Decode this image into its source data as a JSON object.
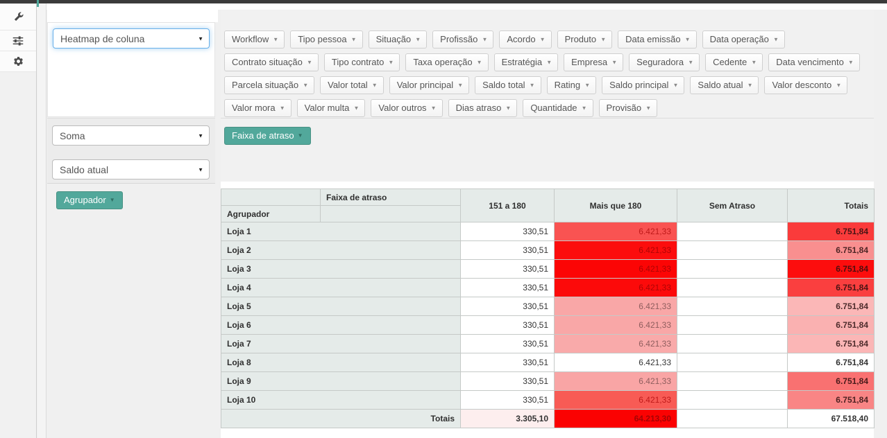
{
  "topbar": {
    "accent_color": "#4fa99c"
  },
  "sidebar": {
    "icons": [
      {
        "name": "wrench-icon"
      },
      {
        "name": "sliders-icon"
      },
      {
        "name": "gear-icon"
      }
    ]
  },
  "controls": {
    "heatmap_mode_select": {
      "value": "Heatmap de coluna"
    },
    "aggregation_select": {
      "value": "Soma"
    },
    "value_field_select": {
      "value": "Saldo atual"
    },
    "row_field_button": {
      "label": "Agrupador"
    },
    "column_field_button": {
      "label": "Faixa de atraso"
    }
  },
  "filters": {
    "available_fields": [
      "Workflow",
      "Tipo pessoa",
      "Situação",
      "Profissão",
      "Acordo",
      "Produto",
      "Data emissão",
      "Data operação",
      "Contrato situação",
      "Tipo contrato",
      "Taxa operação",
      "Estratégia",
      "Empresa",
      "Seguradora",
      "Cedente",
      "Data vencimento",
      "Parcela situação",
      "Valor total",
      "Valor principal",
      "Saldo total",
      "Rating",
      "Saldo principal",
      "Saldo atual",
      "Valor desconto",
      "Valor mora",
      "Valor multa",
      "Valor outros",
      "Dias atraso",
      "Quantidade",
      "Provisão"
    ]
  },
  "chart_data": {
    "type": "heatmap",
    "row_field": "Agrupador",
    "column_field": "Faixa de atraso",
    "columns": [
      "151 a 180",
      "Mais que 180",
      "Sem Atraso",
      "Totais"
    ],
    "accent_colors": {
      "max": "#fc0000",
      "min": "#ffffff"
    },
    "rows": [
      {
        "label": "Loja 1",
        "cells": [
          {
            "v": "330,51",
            "bg": "#ffffff",
            "fg": "#333333"
          },
          {
            "v": "6.421,33",
            "bg": "#f95352",
            "fg": "#bf1a1a"
          },
          {
            "v": "",
            "bg": "#ffffff",
            "fg": "#333333"
          },
          {
            "v": "6.751,84",
            "bg": "#fa3b3b",
            "fg": "#481414",
            "b": true
          }
        ]
      },
      {
        "label": "Loja 2",
        "cells": [
          {
            "v": "330,51",
            "bg": "#ffffff",
            "fg": "#333333"
          },
          {
            "v": "6.421,33",
            "bg": "#fc0d0d",
            "fg": "#ae0505"
          },
          {
            "v": "",
            "bg": "#ffffff",
            "fg": "#333333"
          },
          {
            "v": "6.751,84",
            "bg": "#f98f8f",
            "fg": "#4d2525",
            "b": true
          }
        ]
      },
      {
        "label": "Loja 3",
        "cells": [
          {
            "v": "330,51",
            "bg": "#ffffff",
            "fg": "#333333"
          },
          {
            "v": "6.421,33",
            "bg": "#fc0505",
            "fg": "#ae0505"
          },
          {
            "v": "",
            "bg": "#ffffff",
            "fg": "#333333"
          },
          {
            "v": "6.751,84",
            "bg": "#fd0d0d",
            "fg": "#4d0f0f",
            "b": true
          }
        ]
      },
      {
        "label": "Loja 4",
        "cells": [
          {
            "v": "330,51",
            "bg": "#ffffff",
            "fg": "#333333"
          },
          {
            "v": "6.421,33",
            "bg": "#fc0a0a",
            "fg": "#ae0505"
          },
          {
            "v": "",
            "bg": "#ffffff",
            "fg": "#333333"
          },
          {
            "v": "6.751,84",
            "bg": "#fa3f3f",
            "fg": "#481414",
            "b": true
          }
        ]
      },
      {
        "label": "Loja 5",
        "cells": [
          {
            "v": "330,51",
            "bg": "#ffffff",
            "fg": "#333333"
          },
          {
            "v": "6.421,33",
            "bg": "#f9a7a7",
            "fg": "#8f5e5e"
          },
          {
            "v": "",
            "bg": "#ffffff",
            "fg": "#333333"
          },
          {
            "v": "6.751,84",
            "bg": "#fbb7b7",
            "fg": "#4d2c2c",
            "b": true
          }
        ]
      },
      {
        "label": "Loja 6",
        "cells": [
          {
            "v": "330,51",
            "bg": "#ffffff",
            "fg": "#333333"
          },
          {
            "v": "6.421,33",
            "bg": "#f9a7a7",
            "fg": "#8f5e5e"
          },
          {
            "v": "",
            "bg": "#ffffff",
            "fg": "#333333"
          },
          {
            "v": "6.751,84",
            "bg": "#fab1b1",
            "fg": "#4d2c2c",
            "b": true
          }
        ]
      },
      {
        "label": "Loja 7",
        "cells": [
          {
            "v": "330,51",
            "bg": "#ffffff",
            "fg": "#333333"
          },
          {
            "v": "6.421,33",
            "bg": "#f9aaaa",
            "fg": "#8f5e5e"
          },
          {
            "v": "",
            "bg": "#ffffff",
            "fg": "#333333"
          },
          {
            "v": "6.751,84",
            "bg": "#fbb6b6",
            "fg": "#4d2c2c",
            "b": true
          }
        ]
      },
      {
        "label": "Loja 8",
        "cells": [
          {
            "v": "330,51",
            "bg": "#ffffff",
            "fg": "#333333"
          },
          {
            "v": "6.421,33",
            "bg": "#ffffff",
            "fg": "#333333"
          },
          {
            "v": "",
            "bg": "#ffffff",
            "fg": "#333333"
          },
          {
            "v": "6.751,84",
            "bg": "#ffffff",
            "fg": "#333333",
            "b": true
          }
        ]
      },
      {
        "label": "Loja 9",
        "cells": [
          {
            "v": "330,51",
            "bg": "#ffffff",
            "fg": "#333333"
          },
          {
            "v": "6.421,33",
            "bg": "#f9a5a5",
            "fg": "#8f5e5e"
          },
          {
            "v": "",
            "bg": "#ffffff",
            "fg": "#333333"
          },
          {
            "v": "6.751,84",
            "bg": "#f97171",
            "fg": "#481a1a",
            "b": true
          }
        ]
      },
      {
        "label": "Loja 10",
        "cells": [
          {
            "v": "330,51",
            "bg": "#ffffff",
            "fg": "#333333"
          },
          {
            "v": "6.421,33",
            "bg": "#f85b55",
            "fg": "#bf1a1a"
          },
          {
            "v": "",
            "bg": "#ffffff",
            "fg": "#333333"
          },
          {
            "v": "6.751,84",
            "bg": "#f98585",
            "fg": "#4d2222",
            "b": true
          }
        ]
      }
    ],
    "totals_row": {
      "label": "Totais",
      "cells": [
        {
          "v": "3.305,10",
          "bg": "#fdeeee",
          "fg": "#333333",
          "b": true
        },
        {
          "v": "64.213,30",
          "bg": "#fb0202",
          "fg": "#a60404",
          "b": true
        },
        {
          "v": "",
          "bg": "#ffffff",
          "fg": "#333333"
        },
        {
          "v": "67.518,40",
          "bg": "#ffffff",
          "fg": "#333333",
          "b": true
        }
      ]
    }
  }
}
